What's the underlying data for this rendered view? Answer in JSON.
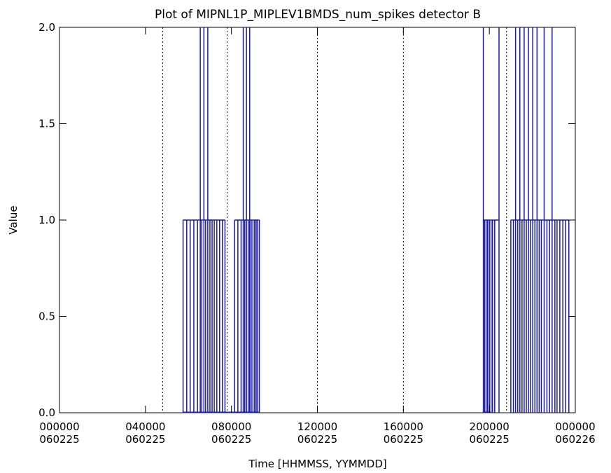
{
  "chart_data": {
    "type": "line",
    "title": "Plot of MIPNL1P_MIPLEV1BMDS_num_spikes detector B",
    "xlabel": "Time [HHMMSS, YYMMDD]",
    "ylabel": "Value",
    "xlim": [
      0,
      24
    ],
    "ylim": [
      0,
      2
    ],
    "yticks": [
      "0.0",
      "0.5",
      "1.0",
      "1.5",
      "2.0"
    ],
    "yticks_values": [
      0,
      0.5,
      1,
      1.5,
      2
    ],
    "xticks_values": [
      0,
      4,
      8,
      12,
      16,
      20,
      24
    ],
    "xticks": [
      {
        "time": "000000",
        "date": "060225"
      },
      {
        "time": "040000",
        "date": "060225"
      },
      {
        "time": "080000",
        "date": "060225"
      },
      {
        "time": "120000",
        "date": "060225"
      },
      {
        "time": "160000",
        "date": "060225"
      },
      {
        "time": "200000",
        "date": "060225"
      },
      {
        "time": "000000",
        "date": "060226"
      }
    ],
    "day_markers_hours": [
      4.8,
      7.8,
      12.0,
      16.0,
      20.8
    ],
    "x_unit": "hours",
    "series": [
      {
        "color": "#1a1aa6",
        "spikes": [
          {
            "x": 5.75,
            "y": 1
          },
          {
            "x": 5.92,
            "y": 1
          },
          {
            "x": 6.08,
            "y": 1
          },
          {
            "x": 6.25,
            "y": 1
          },
          {
            "x": 6.42,
            "y": 1
          },
          {
            "x": 6.55,
            "y": 2
          },
          {
            "x": 6.62,
            "y": 1
          },
          {
            "x": 6.72,
            "y": 2
          },
          {
            "x": 6.8,
            "y": 1
          },
          {
            "x": 6.9,
            "y": 2
          },
          {
            "x": 7.0,
            "y": 1
          },
          {
            "x": 7.1,
            "y": 1
          },
          {
            "x": 7.2,
            "y": 1
          },
          {
            "x": 7.32,
            "y": 1
          },
          {
            "x": 7.45,
            "y": 1
          },
          {
            "x": 7.58,
            "y": 1
          },
          {
            "x": 7.7,
            "y": 1
          },
          {
            "x": 8.15,
            "y": 1
          },
          {
            "x": 8.3,
            "y": 1
          },
          {
            "x": 8.45,
            "y": 1
          },
          {
            "x": 8.55,
            "y": 2
          },
          {
            "x": 8.62,
            "y": 1
          },
          {
            "x": 8.7,
            "y": 2
          },
          {
            "x": 8.78,
            "y": 1
          },
          {
            "x": 8.85,
            "y": 2
          },
          {
            "x": 8.92,
            "y": 1
          },
          {
            "x": 9.0,
            "y": 1
          },
          {
            "x": 9.08,
            "y": 1
          },
          {
            "x": 9.15,
            "y": 1
          },
          {
            "x": 9.22,
            "y": 1
          },
          {
            "x": 9.3,
            "y": 1
          },
          {
            "x": 19.72,
            "y": 2
          },
          {
            "x": 19.78,
            "y": 1
          },
          {
            "x": 19.85,
            "y": 1
          },
          {
            "x": 19.92,
            "y": 1
          },
          {
            "x": 20.0,
            "y": 1
          },
          {
            "x": 20.08,
            "y": 1
          },
          {
            "x": 20.15,
            "y": 1
          },
          {
            "x": 20.25,
            "y": 1
          },
          {
            "x": 20.45,
            "y": 2
          },
          {
            "x": 21.0,
            "y": 1
          },
          {
            "x": 21.12,
            "y": 1
          },
          {
            "x": 21.22,
            "y": 2
          },
          {
            "x": 21.32,
            "y": 1
          },
          {
            "x": 21.42,
            "y": 2
          },
          {
            "x": 21.52,
            "y": 1
          },
          {
            "x": 21.62,
            "y": 2
          },
          {
            "x": 21.72,
            "y": 1
          },
          {
            "x": 21.82,
            "y": 2
          },
          {
            "x": 21.92,
            "y": 1
          },
          {
            "x": 22.02,
            "y": 2
          },
          {
            "x": 22.12,
            "y": 1
          },
          {
            "x": 22.22,
            "y": 2
          },
          {
            "x": 22.32,
            "y": 1
          },
          {
            "x": 22.42,
            "y": 1
          },
          {
            "x": 22.55,
            "y": 2
          },
          {
            "x": 22.68,
            "y": 1
          },
          {
            "x": 22.8,
            "y": 1
          },
          {
            "x": 22.92,
            "y": 2
          },
          {
            "x": 23.05,
            "y": 1
          },
          {
            "x": 23.15,
            "y": 1
          },
          {
            "x": 23.28,
            "y": 1
          },
          {
            "x": 23.42,
            "y": 1
          },
          {
            "x": 23.55,
            "y": 1
          },
          {
            "x": 23.7,
            "y": 1
          }
        ],
        "zero_spans": [
          [
            5.75,
            9.3
          ],
          [
            19.72,
            20.05
          ]
        ]
      }
    ],
    "grid": false
  }
}
